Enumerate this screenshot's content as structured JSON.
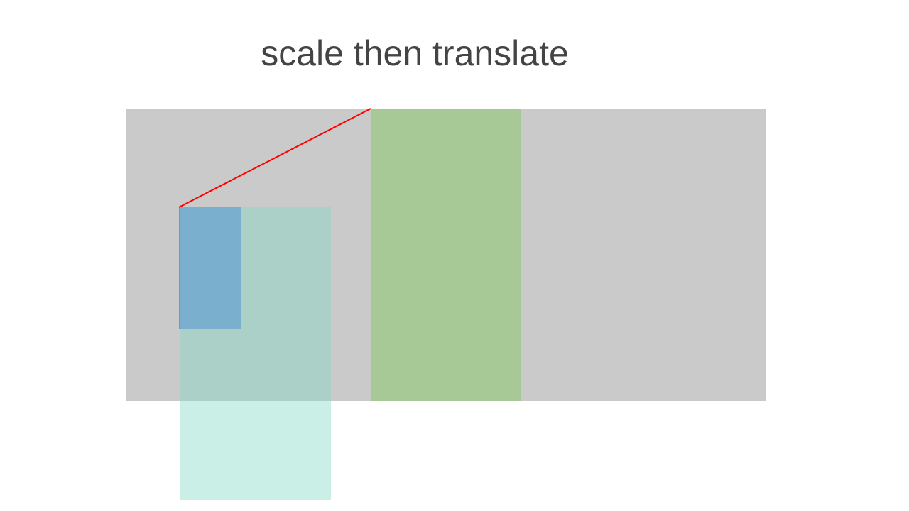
{
  "title": "scale then translate",
  "colors": {
    "title_text": "#444444",
    "background": "#ffffff",
    "canvas_area": "#cacaca",
    "original_rect": "#7791d4",
    "scaled_rect": "#7fd8c4",
    "scaled_rect_opacity": 0.42,
    "translated_rect": "#a7c995",
    "translation_line": "#ff0000"
  }
}
